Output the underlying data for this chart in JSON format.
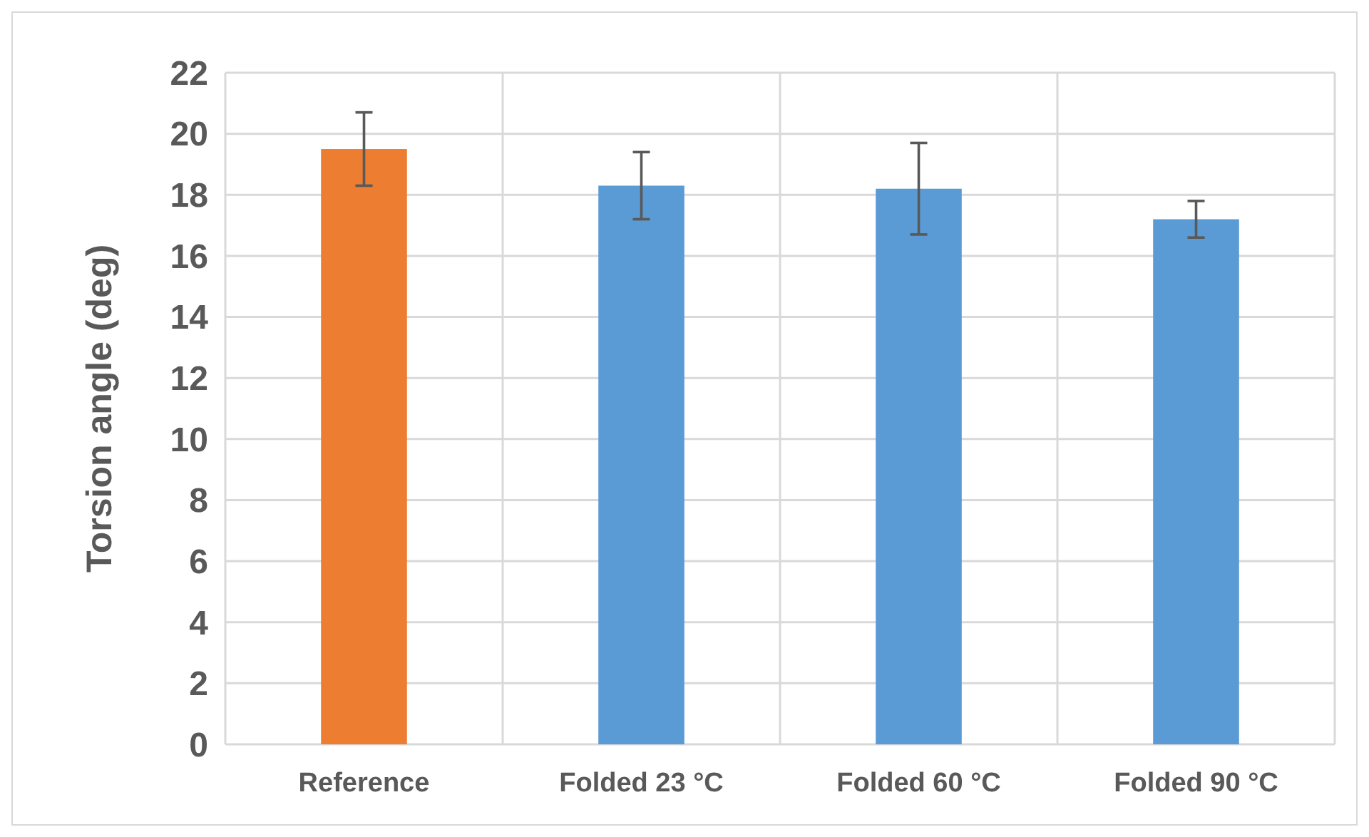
{
  "chart_data": {
    "type": "bar",
    "ylabel": "Torsion angle (deg)",
    "categories": [
      "Reference",
      "Folded 23 °C",
      "Folded 60 °C",
      "Folded 90 °C"
    ],
    "values": [
      19.5,
      18.3,
      18.2,
      17.2
    ],
    "colors": [
      "#ed7d31",
      "#5b9bd5",
      "#5b9bd5",
      "#5b9bd5"
    ],
    "errors": [
      1.2,
      1.1,
      1.5,
      0.6
    ],
    "ylim": [
      0,
      22
    ],
    "yticks": [
      0,
      2,
      4,
      6,
      8,
      10,
      12,
      14,
      16,
      18,
      20,
      22
    ],
    "grid": true
  }
}
